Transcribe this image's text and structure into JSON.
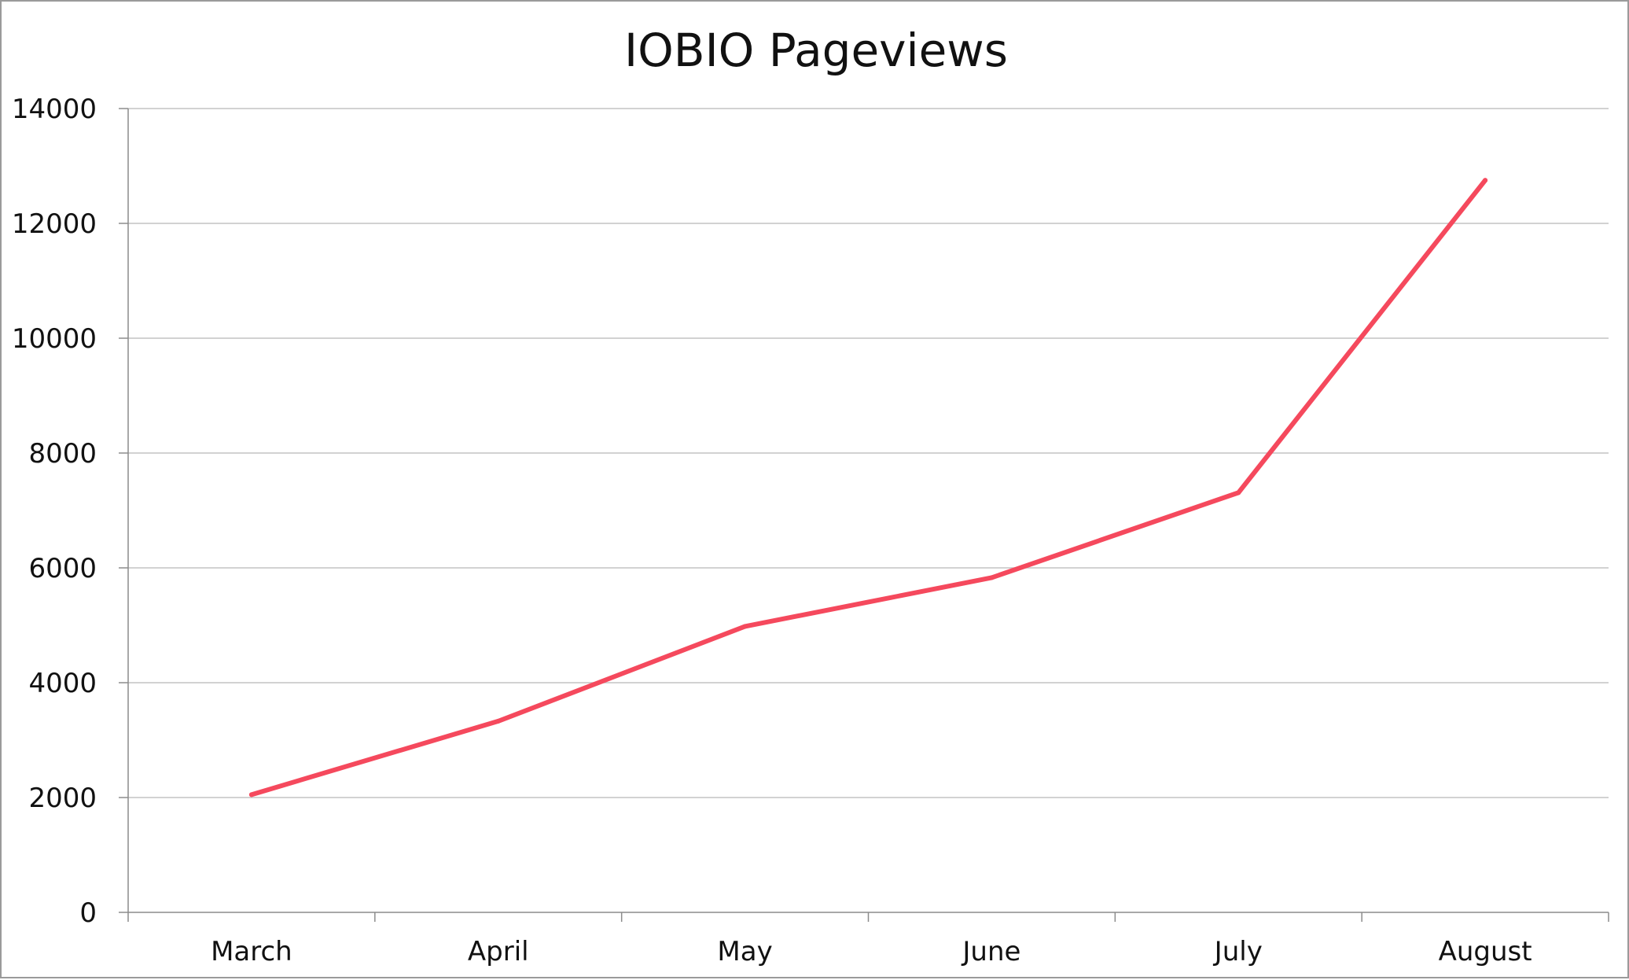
{
  "chart_data": {
    "type": "line",
    "title": "IOBIO Pageviews",
    "xlabel": "",
    "ylabel": "",
    "categories": [
      "March",
      "April",
      "May",
      "June",
      "July",
      "August"
    ],
    "series": [
      {
        "values": [
          2050,
          3330,
          4980,
          5830,
          7310,
          12750
        ],
        "color": "#f5495d"
      }
    ],
    "ylim": [
      0,
      14000
    ],
    "yticks": [
      0,
      2000,
      4000,
      6000,
      8000,
      10000,
      12000,
      14000
    ],
    "grid": true,
    "legend": "none"
  }
}
